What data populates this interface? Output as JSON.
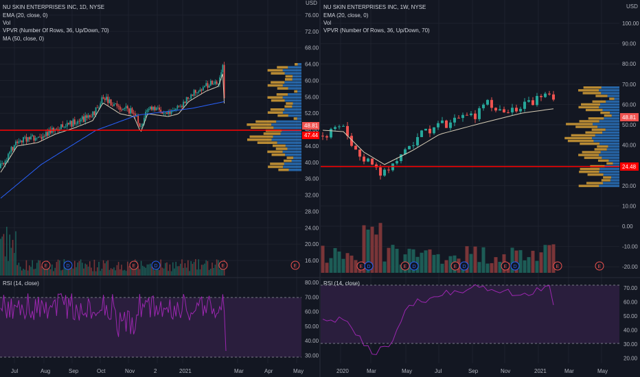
{
  "left": {
    "title": "NU SKIN ENTERPRISES INC, 1D, NYSE",
    "indicators": [
      "EMA (20, close, 0)",
      "Vol",
      "VPVR (Number Of Rows, 36, Up/Down, 70)",
      "MA (50, close, 0)"
    ],
    "price_ticks": [
      "76.00",
      "72.00",
      "68.00",
      "64.00",
      "60.00",
      "56.00",
      "52.00",
      "48.00",
      "44.00",
      "40.00",
      "36.00",
      "32.00",
      "28.00",
      "24.00",
      "20.00",
      "16.00"
    ],
    "last_price": "48.81",
    "line_price": "47.44",
    "time_ticks": [
      "Jul",
      "Aug",
      "Sep",
      "Oct",
      "Nov",
      "2",
      "2021",
      "Mar",
      "Apr",
      "May"
    ],
    "rsi_title": "RSI (14, close)",
    "rsi_ticks": [
      "80.00",
      "70.00",
      "60.00",
      "50.00",
      "40.00",
      "30.00"
    ]
  },
  "right": {
    "title": "NU SKIN ENTERPRISES INC, 1W, NYSE",
    "indicators": [
      "EMA (20, close, 0)",
      "Vol",
      "VPVR (Number Of Rows, 36, Up/Down, 70)"
    ],
    "currency": "USD",
    "price_ticks": [
      "100.00",
      "90.00",
      "80.00",
      "70.00",
      "60.00",
      "50.00",
      "40.00",
      "30.00",
      "20.00",
      "10.00",
      "0.00",
      "-10.00",
      "-20.00"
    ],
    "last_price": "48.81",
    "line_price": "24.48",
    "time_ticks": [
      "2020",
      "Mar",
      "May",
      "Jul",
      "Sep",
      "Nov",
      "2021",
      "Mar",
      "May"
    ],
    "rsi_title": "RSI (14, close)",
    "rsi_ticks": [
      "70.00",
      "60.00",
      "50.00",
      "40.00",
      "30.00",
      "20.00"
    ]
  },
  "left_currency": "USD",
  "event_letters": {
    "earnings": "E",
    "dividend": "D"
  },
  "colors": {
    "background": "#131722",
    "up": "#26a69a",
    "down": "#ef5350",
    "ema": "#d9cfb8",
    "ma": "#2962ff",
    "rsi": "#9c27b0",
    "rsi_band": "#2a1e3d",
    "hline": "#ff0000",
    "vpvr_up": "#f0b23a",
    "vpvr_down": "#2d7fd1"
  }
}
